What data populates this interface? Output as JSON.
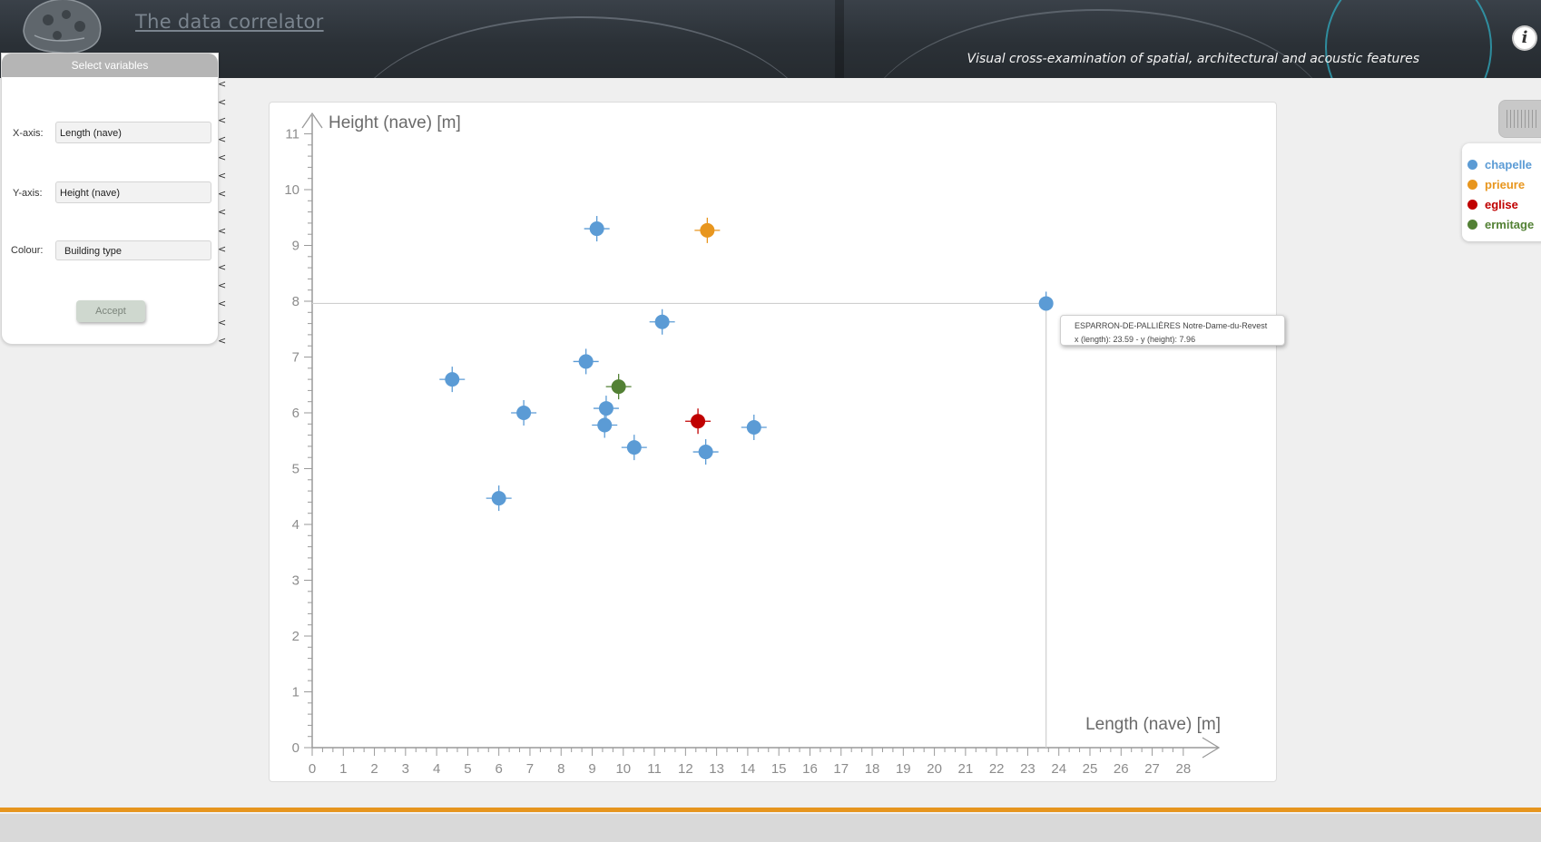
{
  "header": {
    "title": "The data correlator",
    "subtitle": "Visual cross-examination of spatial, architectural and acoustic features",
    "info_label": "i"
  },
  "panel": {
    "title": "Select variables",
    "x_label": "X-axis:",
    "x_value": "Length (nave)",
    "y_label": "Y-axis:",
    "y_value": "Height (nave)",
    "colour_label": "Colour:",
    "colour_value": "Building type",
    "accept_label": "Accept",
    "collapse_glyph": "<"
  },
  "colors": {
    "chapelle": "#5b9bd5",
    "prieure": "#e8961e",
    "eglise": "#c00000",
    "ermitage": "#538135",
    "accent": "#e6951e"
  },
  "legend": [
    {
      "name": "chapelle",
      "color": "#5b9bd5"
    },
    {
      "name": "prieure",
      "color": "#e8961e"
    },
    {
      "name": "eglise",
      "color": "#c00000"
    },
    {
      "name": "ermitage",
      "color": "#538135"
    }
  ],
  "tooltip": {
    "line1": "ESPARRON-DE-PALLIÈRES Notre-Dame-du-Revest",
    "line2": "x (length): 23.59 - y (height): 7.96"
  },
  "chart_data": {
    "type": "scatter",
    "xlabel": "Length (nave) [m]",
    "ylabel": "Height (nave) [m]",
    "xlim": [
      0,
      28
    ],
    "ylim": [
      0,
      11
    ],
    "x_ticks": [
      0,
      1,
      2,
      3,
      4,
      5,
      6,
      7,
      8,
      9,
      10,
      11,
      12,
      13,
      14,
      15,
      16,
      17,
      18,
      19,
      20,
      21,
      22,
      23,
      24,
      25,
      26,
      27,
      28
    ],
    "y_ticks": [
      0,
      1,
      2,
      3,
      4,
      5,
      6,
      7,
      8,
      9,
      10,
      11
    ],
    "points": [
      {
        "x": 9.15,
        "y": 9.3,
        "type": "chapelle"
      },
      {
        "x": 12.7,
        "y": 9.27,
        "type": "prieure"
      },
      {
        "x": 23.59,
        "y": 7.96,
        "type": "chapelle",
        "highlight": true
      },
      {
        "x": 11.25,
        "y": 7.63,
        "type": "chapelle"
      },
      {
        "x": 8.8,
        "y": 6.92,
        "type": "chapelle"
      },
      {
        "x": 4.5,
        "y": 6.6,
        "type": "chapelle"
      },
      {
        "x": 9.85,
        "y": 6.47,
        "type": "ermitage"
      },
      {
        "x": 9.45,
        "y": 6.08,
        "type": "chapelle"
      },
      {
        "x": 6.8,
        "y": 6.0,
        "type": "chapelle"
      },
      {
        "x": 12.4,
        "y": 5.85,
        "type": "eglise"
      },
      {
        "x": 9.4,
        "y": 5.78,
        "type": "chapelle"
      },
      {
        "x": 14.2,
        "y": 5.74,
        "type": "chapelle"
      },
      {
        "x": 10.35,
        "y": 5.38,
        "type": "chapelle"
      },
      {
        "x": 12.65,
        "y": 5.3,
        "type": "chapelle"
      },
      {
        "x": 6.0,
        "y": 4.47,
        "type": "chapelle"
      }
    ]
  }
}
